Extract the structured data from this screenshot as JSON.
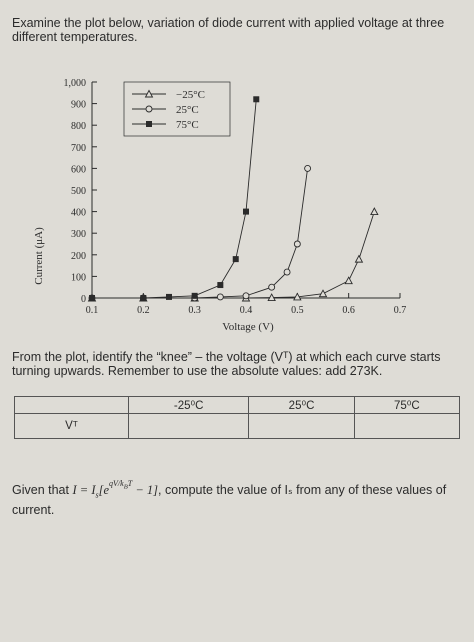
{
  "intro": "Examine the plot below, variation of diode current with applied voltage at three different temperatures.",
  "chart_data": {
    "type": "line",
    "xlabel": "Voltage (V)",
    "ylabel": "Current (μA)",
    "xlim": [
      0.1,
      0.7
    ],
    "ylim": [
      0,
      1000
    ],
    "x_ticks": [
      "0.1",
      "0.2",
      "0.3",
      "0.4",
      "0.5",
      "0.6",
      "0.7"
    ],
    "y_ticks": [
      "0",
      "100",
      "200",
      "300",
      "400",
      "500",
      "600",
      "700",
      "800",
      "900",
      "1,000"
    ],
    "legend_position": "top-center",
    "series": [
      {
        "name": "−25°C",
        "marker": "triangle",
        "x": [
          0.1,
          0.2,
          0.3,
          0.4,
          0.45,
          0.5,
          0.55,
          0.6,
          0.62,
          0.65
        ],
        "y": [
          0,
          0,
          0,
          0,
          2,
          5,
          20,
          80,
          180,
          400
        ]
      },
      {
        "name": "25°C",
        "marker": "circle",
        "x": [
          0.1,
          0.2,
          0.3,
          0.35,
          0.4,
          0.45,
          0.48,
          0.5,
          0.52
        ],
        "y": [
          0,
          0,
          0,
          5,
          10,
          50,
          120,
          250,
          600
        ]
      },
      {
        "name": "75°C",
        "marker": "square",
        "x": [
          0.1,
          0.2,
          0.25,
          0.3,
          0.35,
          0.38,
          0.4,
          0.42
        ],
        "y": [
          0,
          0,
          5,
          10,
          60,
          180,
          400,
          920
        ]
      }
    ]
  },
  "question": "From the plot, identify the “knee” – the voltage (Vᵀ) at which each curve starts turning upwards. Remember to use the absolute values: add 273K.",
  "table": {
    "headers": [
      "-25⁰C",
      "25⁰C",
      "75⁰C"
    ],
    "row_label": "Vᵀ"
  },
  "given": {
    "prefix": "Given that",
    "suffix": ", compute the value of Iₛ from any of these values of current."
  },
  "colors": {
    "ink": "#2b2b2b",
    "paper": "#dedcd6"
  }
}
